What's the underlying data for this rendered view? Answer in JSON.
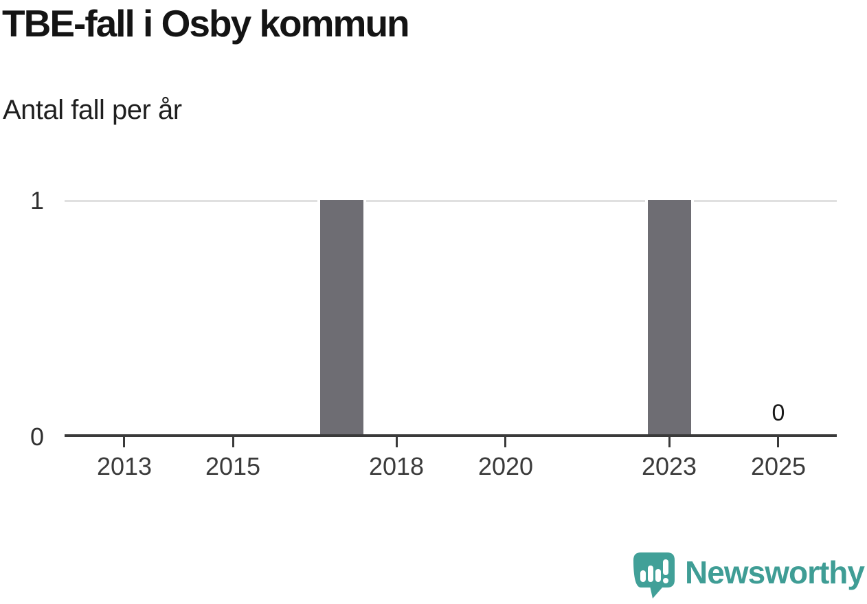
{
  "header": {
    "title": "TBE-fall i Osby kommun",
    "subtitle": "Antal fall per år"
  },
  "chart_data": {
    "type": "bar",
    "title": "TBE-fall i Osby kommun",
    "subtitle": "Antal fall per år",
    "categories": [
      2012,
      2013,
      2014,
      2015,
      2016,
      2017,
      2018,
      2019,
      2020,
      2021,
      2022,
      2023,
      2024,
      2025
    ],
    "values": [
      0,
      0,
      0,
      0,
      0,
      1,
      0,
      0,
      0,
      0,
      0,
      1,
      0,
      0
    ],
    "x_tick_labels": [
      "2013",
      "2015",
      "2018",
      "2020",
      "2023",
      "2025"
    ],
    "x_tick_years": [
      2013,
      2015,
      2018,
      2020,
      2023,
      2025
    ],
    "y_tick_labels": [
      "0",
      "1"
    ],
    "y_tick_values": [
      0,
      1
    ],
    "ylim": [
      0,
      1
    ],
    "grid": "horizontal-at-1-only",
    "legend": "none",
    "annotations": [
      {
        "year": 2025,
        "value": 0,
        "label": "0"
      }
    ],
    "colors": {
      "bar": "#6e6d73",
      "axis": "#3a3a3a",
      "gridline": "#e0e0e0",
      "tick_label": "#3a3a3a"
    }
  },
  "footer": {
    "brand": "Newsworthy",
    "logo_icon": "newsworthy-speech-bubble-chart-icon",
    "brand_color": "#3f9d95",
    "icon_fill": "#41a098"
  }
}
